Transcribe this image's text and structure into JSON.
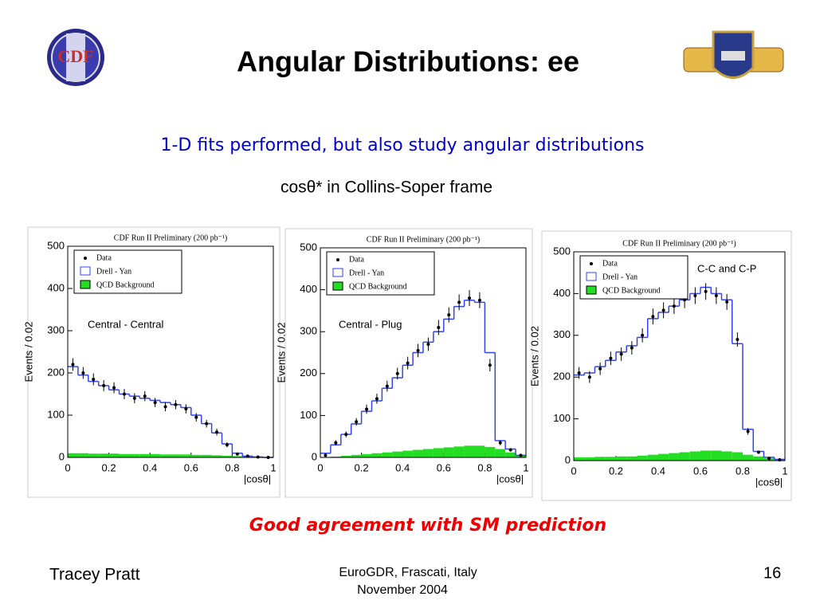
{
  "title": "Angular Distributions: ee",
  "subtitle": "1-D fits performed, but also study angular distributions",
  "subheading": "cosθ* in Collins-Soper frame",
  "conclusion": "Good agreement with SM prediction",
  "footer": {
    "author": "Tracey Pratt",
    "venue": "EuroGDR, Frascati, Italy",
    "date": "November 2004",
    "page": "16"
  },
  "chart_data": [
    {
      "type": "histogram",
      "title": "CDF Run II Preliminary (200 pb⁻¹)",
      "annotation": "Central - Central",
      "x_label": "|cosθ|",
      "y_label": "Events / 0.02",
      "bins": [
        0,
        0.05,
        0.1,
        0.15,
        0.2,
        0.25,
        0.3,
        0.35,
        0.4,
        0.45,
        0.5,
        0.55,
        0.6,
        0.65,
        0.7,
        0.75,
        0.8,
        0.85,
        0.9,
        0.95,
        1
      ],
      "xlim": [
        0,
        1
      ],
      "xticks": [
        0,
        0.2,
        0.4,
        0.6,
        0.8,
        1
      ],
      "ylim": [
        0,
        500
      ],
      "yticks": [
        0,
        100,
        200,
        300,
        400,
        500
      ],
      "series": [
        {
          "name": "Data",
          "color": "#000000",
          "values": [
            220,
            200,
            185,
            170,
            165,
            150,
            140,
            145,
            130,
            120,
            125,
            115,
            95,
            80,
            60,
            30,
            8,
            3,
            1,
            0
          ],
          "errors": [
            15,
            14,
            14,
            13,
            13,
            12,
            12,
            12,
            11,
            11,
            11,
            11,
            10,
            9,
            8,
            6,
            3,
            2,
            1,
            0
          ]
        },
        {
          "name": "Drell - Yan",
          "color": "#3344ee",
          "values": [
            215,
            195,
            180,
            170,
            160,
            150,
            145,
            140,
            135,
            130,
            125,
            118,
            100,
            80,
            58,
            32,
            10,
            3,
            1,
            0
          ]
        },
        {
          "name": "QCD Background",
          "color": "#22dd22",
          "values": [
            10,
            10,
            9,
            9,
            9,
            8,
            8,
            8,
            8,
            7,
            7,
            7,
            6,
            6,
            5,
            4,
            3,
            2,
            1,
            1
          ]
        }
      ]
    },
    {
      "type": "histogram",
      "title": "CDF Run II Preliminary (200 pb⁻¹)",
      "annotation": "Central - Plug",
      "x_label": "|cosθ|",
      "y_label": "Events / 0.02",
      "bins": [
        0,
        0.05,
        0.1,
        0.15,
        0.2,
        0.25,
        0.3,
        0.35,
        0.4,
        0.45,
        0.5,
        0.55,
        0.6,
        0.65,
        0.7,
        0.75,
        0.8,
        0.85,
        0.9,
        0.95,
        1
      ],
      "xlim": [
        0,
        1
      ],
      "xticks": [
        0,
        0.2,
        0.4,
        0.6,
        0.8,
        1
      ],
      "ylim": [
        0,
        500
      ],
      "yticks": [
        0,
        100,
        200,
        300,
        400,
        500
      ],
      "series": [
        {
          "name": "Data",
          "color": "#000000",
          "values": [
            5,
            35,
            55,
            85,
            115,
            140,
            170,
            200,
            225,
            255,
            270,
            310,
            340,
            370,
            380,
            375,
            220,
            35,
            18,
            5
          ],
          "errors": [
            2,
            6,
            7,
            9,
            11,
            12,
            13,
            14,
            15,
            16,
            16,
            18,
            18,
            19,
            19,
            19,
            15,
            6,
            4,
            2
          ]
        },
        {
          "name": "Drell - Yan",
          "color": "#3344ee",
          "values": [
            10,
            30,
            55,
            80,
            110,
            135,
            165,
            190,
            220,
            250,
            275,
            300,
            330,
            360,
            375,
            370,
            250,
            40,
            20,
            5
          ]
        },
        {
          "name": "QCD Background",
          "color": "#22dd22",
          "values": [
            1,
            2,
            4,
            6,
            8,
            10,
            12,
            14,
            16,
            18,
            20,
            22,
            24,
            26,
            28,
            28,
            25,
            20,
            12,
            5
          ]
        }
      ]
    },
    {
      "type": "histogram",
      "title": "CDF Run II Preliminary (200 pb⁻¹)",
      "annotation": "C-C and C-P",
      "x_label": "|cosθ|",
      "y_label": "Events / 0.02",
      "bins": [
        0,
        0.05,
        0.1,
        0.15,
        0.2,
        0.25,
        0.3,
        0.35,
        0.4,
        0.45,
        0.5,
        0.55,
        0.6,
        0.65,
        0.7,
        0.75,
        0.8,
        0.85,
        0.9,
        0.95,
        1
      ],
      "xlim": [
        0,
        1
      ],
      "xticks": [
        0,
        0.2,
        0.4,
        0.6,
        0.8,
        1
      ],
      "ylim": [
        0,
        500
      ],
      "yticks": [
        0,
        100,
        200,
        300,
        400,
        500
      ],
      "series": [
        {
          "name": "Data",
          "color": "#000000",
          "values": [
            210,
            200,
            220,
            245,
            255,
            270,
            300,
            345,
            360,
            370,
            385,
            395,
            405,
            395,
            380,
            290,
            70,
            20,
            5,
            2
          ],
          "errors": [
            14,
            14,
            15,
            16,
            16,
            16,
            17,
            19,
            19,
            19,
            20,
            20,
            20,
            20,
            19,
            17,
            8,
            4,
            2,
            1
          ]
        },
        {
          "name": "Drell - Yan",
          "color": "#3344ee",
          "values": [
            205,
            210,
            225,
            240,
            260,
            275,
            295,
            340,
            355,
            370,
            385,
            400,
            415,
            400,
            385,
            280,
            75,
            22,
            8,
            3
          ]
        },
        {
          "name": "QCD Background",
          "color": "#22dd22",
          "values": [
            8,
            8,
            9,
            9,
            10,
            10,
            12,
            14,
            16,
            18,
            20,
            22,
            24,
            24,
            22,
            20,
            14,
            10,
            6,
            3
          ]
        }
      ]
    }
  ]
}
